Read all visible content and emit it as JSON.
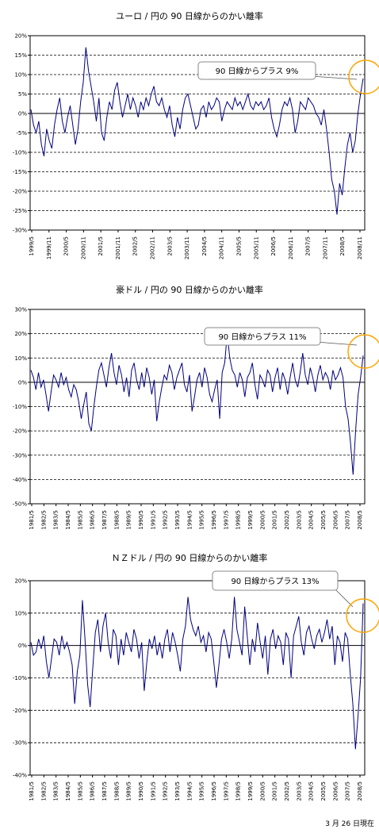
{
  "footnote": "3 月 26 日現在",
  "chart_data": [
    {
      "type": "line",
      "title": "ユーロ / 円の 90 日線からのかい離率",
      "callout": "90 日線からプラス 9%",
      "y_unit": "%",
      "ylim": [
        -30,
        20
      ],
      "y_ticks": [
        "20%",
        "15%",
        "10%",
        "5%",
        "0%",
        "-5%",
        "-10%",
        "-15%",
        "-20%",
        "-25%",
        "-30%"
      ],
      "x_ticks": [
        "1999/5",
        "1999/11",
        "2000/5",
        "2000/11",
        "2001/5",
        "2001/11",
        "2002/5",
        "2002/11",
        "2003/5",
        "2003/11",
        "2004/5",
        "2004/11",
        "2005/5",
        "2005/11",
        "2006/5",
        "2006/11",
        "2007/5",
        "2007/11",
        "2008/5",
        "2008/11"
      ],
      "grid": true,
      "line_color": "#000080",
      "highlight_color": "#ffa500",
      "series": [
        {
          "x_start": "1999/5",
          "x_end": "2009/3/26",
          "values": [
            1,
            -3,
            -5,
            -2,
            -8,
            -11,
            -4,
            -7,
            -9,
            -3,
            1,
            4,
            -2,
            -5,
            -1,
            2,
            -3,
            -8,
            -4,
            3,
            8,
            17,
            11,
            7,
            3,
            -2,
            4,
            -5,
            -7,
            -1,
            3,
            1,
            6,
            8,
            3,
            -1,
            2,
            5,
            1,
            4,
            2,
            -1,
            3,
            1,
            4,
            2,
            5,
            7,
            3,
            2,
            4,
            1,
            -1,
            2,
            -3,
            -6,
            -1,
            -4,
            1,
            4,
            5,
            2,
            -1,
            -4,
            -3,
            1,
            2,
            -1,
            3,
            1,
            2,
            4,
            3,
            -2,
            1,
            3,
            2,
            1,
            4,
            2,
            3,
            1,
            3,
            5,
            2,
            1,
            3,
            2,
            3,
            1,
            2,
            4,
            -1,
            -4,
            -6,
            -3,
            1,
            3,
            2,
            4,
            1,
            -5,
            -2,
            3,
            2,
            1,
            4,
            3,
            2,
            0,
            -1,
            -3,
            1,
            -4,
            -10,
            -17,
            -20,
            -26,
            -18,
            -21,
            -14,
            -8,
            -5,
            -10,
            -7,
            0,
            5,
            9
          ]
        }
      ]
    },
    {
      "type": "line",
      "title": "豪ドル / 円の 90 日線からのかい離率",
      "callout": "90 日線からプラス 11%",
      "y_unit": "%",
      "ylim": [
        -50,
        30
      ],
      "y_ticks": [
        "30%",
        "20%",
        "10%",
        "0%",
        "-10%",
        "-20%",
        "-30%",
        "-40%",
        "-50%"
      ],
      "x_ticks": [
        "1981/5",
        "1982/5",
        "1983/5",
        "1984/5",
        "1985/5",
        "1986/5",
        "1987/5",
        "1988/5",
        "1989/5",
        "1990/5",
        "1991/5",
        "1992/5",
        "1993/5",
        "1994/5",
        "1995/5",
        "1996/5",
        "1997/5",
        "1998/5",
        "1999/5",
        "2000/5",
        "2001/5",
        "2002/5",
        "2003/5",
        "2004/5",
        "2005/5",
        "2006/5",
        "2007/5",
        "2008/5"
      ],
      "grid": true,
      "line_color": "#000080",
      "highlight_color": "#ffa500",
      "series": [
        {
          "x_start": "1981/5",
          "x_end": "2009/3/26",
          "values": [
            5,
            2,
            -3,
            4,
            -2,
            1,
            -5,
            -12,
            -4,
            3,
            1,
            -2,
            4,
            -1,
            2,
            -3,
            -6,
            -1,
            -3,
            -8,
            -15,
            -9,
            -4,
            -17,
            -20,
            -10,
            -2,
            5,
            8,
            3,
            -2,
            6,
            12,
            4,
            -1,
            7,
            3,
            -4,
            2,
            -6,
            5,
            8,
            1,
            -3,
            4,
            -2,
            6,
            2,
            -5,
            1,
            -16,
            -8,
            -2,
            3,
            1,
            7,
            4,
            -3,
            2,
            5,
            8,
            -1,
            -4,
            3,
            -12,
            -6,
            1,
            4,
            -2,
            6,
            2,
            -5,
            -8,
            -3,
            1,
            -15,
            4,
            8,
            20,
            10,
            5,
            3,
            -2,
            4,
            1,
            -6,
            2,
            4,
            8,
            -1,
            -7,
            3,
            1,
            -2,
            5,
            3,
            -4,
            2,
            6,
            -3,
            4,
            1,
            -5,
            2,
            8,
            1,
            -2,
            4,
            12,
            3,
            -1,
            6,
            2,
            -4,
            3,
            7,
            1,
            4,
            2,
            -3,
            5,
            1,
            3,
            6,
            2,
            -10,
            -15,
            -25,
            -38,
            -20,
            -5,
            2,
            11
          ]
        }
      ]
    },
    {
      "type": "line",
      "title": "ＮＺドル / 円の 90 日線からのかい離率",
      "callout": "90 日線からプラス 13%",
      "y_unit": "%",
      "ylim": [
        -40,
        20
      ],
      "y_ticks": [
        "20%",
        "10%",
        "0%",
        "-10%",
        "-20%",
        "-30%",
        "-40%"
      ],
      "x_ticks": [
        "1981/5",
        "1982/5",
        "1983/5",
        "1984/5",
        "1985/5",
        "1986/5",
        "1987/5",
        "1988/5",
        "1989/5",
        "1990/5",
        "1991/5",
        "1992/5",
        "1993/5",
        "1994/5",
        "1995/5",
        "1996/5",
        "1997/5",
        "1998/5",
        "1999/5",
        "2000/5",
        "2001/5",
        "2002/5",
        "2003/5",
        "2004/5",
        "2005/5",
        "2006/5",
        "2007/5",
        "2008/5"
      ],
      "grid": true,
      "line_color": "#000080",
      "highlight_color": "#ffa500",
      "series": [
        {
          "x_start": "1981/5",
          "x_end": "2009/3/26",
          "values": [
            1,
            -3,
            -2,
            2,
            -1,
            3,
            -5,
            -10,
            -4,
            2,
            1,
            -3,
            3,
            -1,
            1,
            -2,
            -6,
            -18,
            -8,
            -3,
            14,
            2,
            -12,
            -19,
            -7,
            4,
            8,
            -2,
            6,
            10,
            1,
            -4,
            5,
            3,
            -6,
            2,
            -3,
            4,
            1,
            -2,
            5,
            2,
            -4,
            1,
            -14,
            -5,
            2,
            -1,
            3,
            -3,
            1,
            -4,
            2,
            5,
            -2,
            4,
            1,
            -3,
            -8,
            2,
            6,
            15,
            8,
            5,
            3,
            6,
            1,
            3,
            -2,
            4,
            2,
            -5,
            -13,
            -6,
            2,
            5,
            1,
            -4,
            2,
            15,
            5,
            1,
            -3,
            12,
            3,
            -6,
            2,
            -2,
            7,
            1,
            -4,
            3,
            -9,
            2,
            5,
            -1,
            3,
            1,
            -6,
            4,
            2,
            -10,
            3,
            6,
            9,
            1,
            -3,
            4,
            6,
            2,
            -1,
            3,
            5,
            1,
            4,
            8,
            2,
            6,
            -6,
            3,
            1,
            -5,
            4,
            2,
            -9,
            -18,
            -32,
            -22,
            -10,
            13
          ]
        }
      ]
    }
  ]
}
